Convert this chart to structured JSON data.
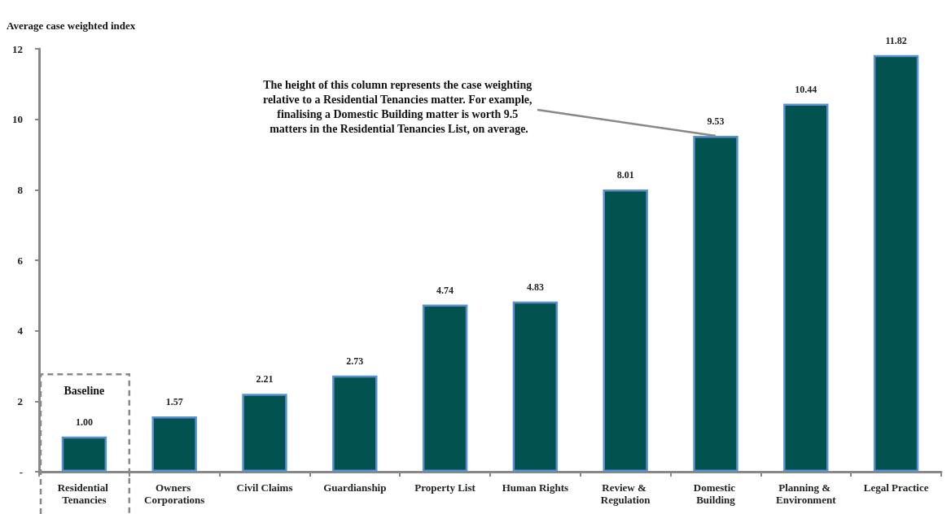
{
  "chart_data": {
    "type": "bar",
    "ylabel": "Average case weighted index",
    "categories": [
      "Residential Tenancies",
      "Owners Corporations",
      "Civil Claims",
      "Guardianship",
      "Property List",
      "Human Rights",
      "Review & Regulation",
      "Domestic Building",
      "Planning & Environment",
      "Legal Practice"
    ],
    "values": [
      1.0,
      1.57,
      2.21,
      2.73,
      4.74,
      4.83,
      8.01,
      9.53,
      10.44,
      11.82
    ],
    "value_labels": [
      "1.00",
      "1.57",
      "2.21",
      "2.73",
      "4.74",
      "4.83",
      "8.01",
      "9.53",
      "10.44",
      "11.82"
    ],
    "color": "#02524f",
    "ylim": [
      0,
      12
    ],
    "yticks": [
      {
        "value": 0,
        "label": "-"
      },
      2,
      4,
      6,
      8,
      10,
      12
    ],
    "grid": false,
    "annotations": [
      "Baseline",
      {
        "text": "The height of this column represents the case weighting relative to a Residential Tenancies matter. For example, finalising a Domestic Building matter is worth 9.5 matters in the Residential Tenancies List, on average.",
        "x": "Domestic Building",
        "y": 9.53
      }
    ]
  }
}
